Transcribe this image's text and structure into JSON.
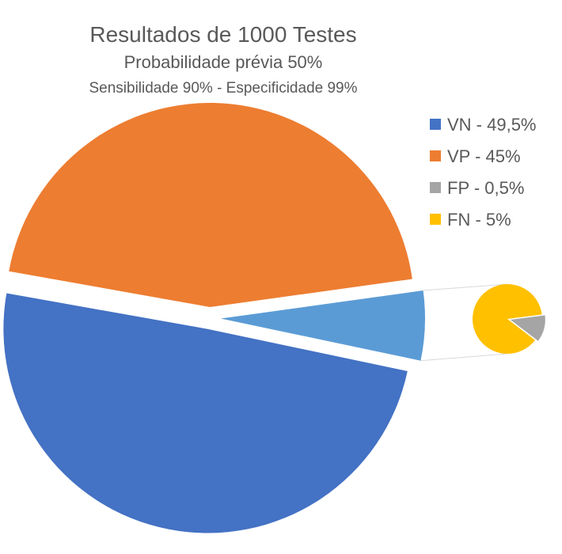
{
  "chart_data": {
    "type": "pie",
    "title": "Resultados de 1000 Testes",
    "subtitle": "Probabilidade prévia 50%",
    "subtitle2": "Sensibilidade 90%  -  Especificidade 99%",
    "series": [
      {
        "name": "VN",
        "label": "VN -  49,5%",
        "value": 49.5,
        "color": "#4472C4"
      },
      {
        "name": "VP",
        "label": "VP  -  45%",
        "value": 45,
        "color": "#ED7D31"
      },
      {
        "name": "FP",
        "label": "FP  -  0,5%",
        "value": 0.5,
        "color": "#A5A5A5"
      },
      {
        "name": "FN",
        "label": "FN -  5%",
        "value": 5,
        "color": "#FFC000"
      }
    ],
    "combined_slice": {
      "members": [
        "FP",
        "FN"
      ],
      "value": 5.5,
      "color": "#5B9BD5"
    },
    "legend_position": "top-right",
    "chart_subtype": "pie-of-pie"
  }
}
